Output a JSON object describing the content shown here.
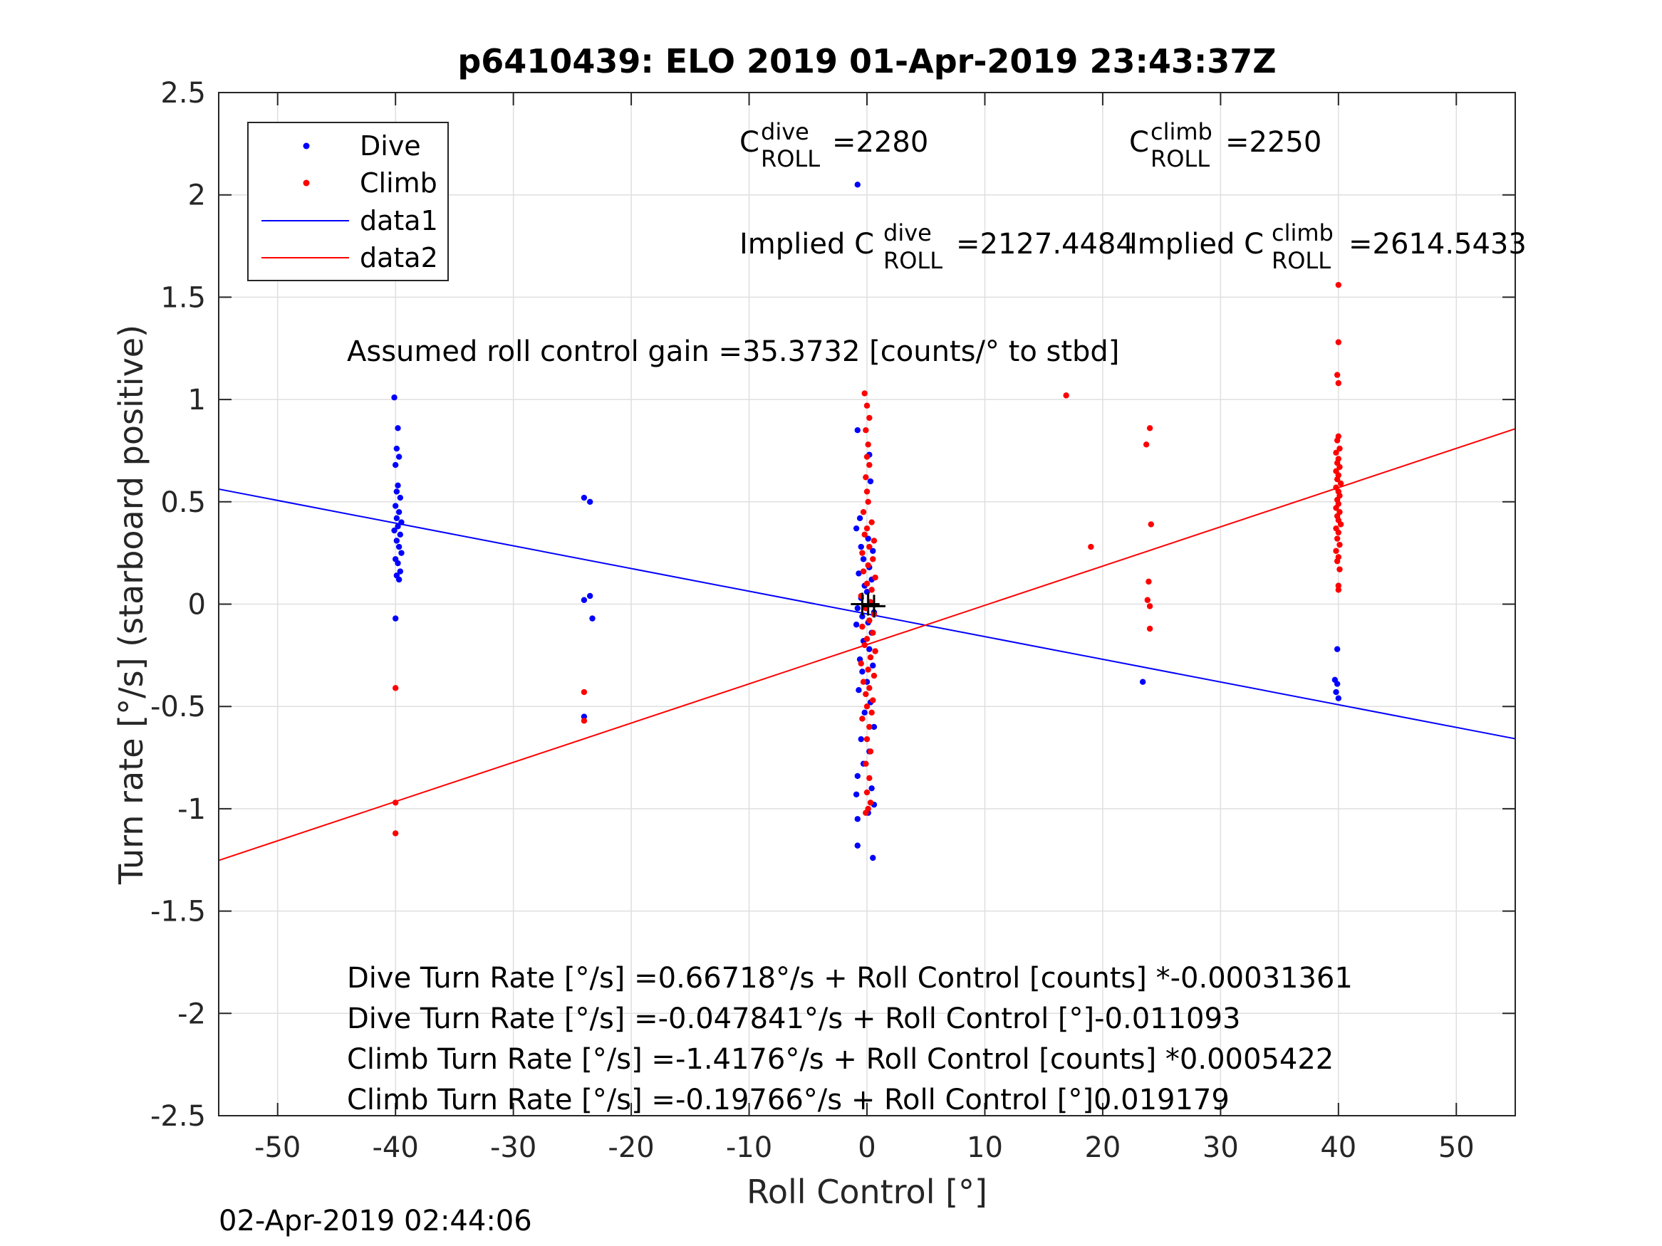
{
  "chart_data": {
    "type": "scatter",
    "title": "p6410439: ELO 2019 01-Apr-2019 23:43:37Z",
    "xlabel": "Roll Control [°]",
    "ylabel": "Turn rate [°/s] (starboard positive)",
    "xlim": [
      -55,
      55
    ],
    "ylim": [
      -2.5,
      2.5
    ],
    "xticks": [
      -50,
      -40,
      -30,
      -20,
      -10,
      0,
      10,
      20,
      30,
      40,
      50
    ],
    "yticks": [
      -2.5,
      -2,
      -1.5,
      -1,
      -0.5,
      0,
      0.5,
      1,
      1.5,
      2,
      2.5
    ],
    "xtick_labels": [
      "-50",
      "-40",
      "-30",
      "-20",
      "-10",
      "0",
      "10",
      "20",
      "30",
      "40",
      "50"
    ],
    "ytick_labels": [
      "-2.5",
      "-2",
      "-1.5",
      "-1",
      "-0.5",
      "0",
      "0.5",
      "1",
      "1.5",
      "2",
      "2.5"
    ],
    "grid": true,
    "legend_position": "top-left",
    "series": [
      {
        "name": "Dive",
        "kind": "points",
        "color": "#0000ff",
        "points": [
          [
            -40.1,
            1.01
          ],
          [
            -39.8,
            0.86
          ],
          [
            -39.9,
            0.76
          ],
          [
            -39.7,
            0.72
          ],
          [
            -40.0,
            0.68
          ],
          [
            -39.8,
            0.58
          ],
          [
            -39.9,
            0.55
          ],
          [
            -39.6,
            0.52
          ],
          [
            -40.0,
            0.48
          ],
          [
            -39.7,
            0.45
          ],
          [
            -39.9,
            0.42
          ],
          [
            -39.5,
            0.4
          ],
          [
            -39.8,
            0.38
          ],
          [
            -40.1,
            0.36
          ],
          [
            -39.6,
            0.34
          ],
          [
            -39.9,
            0.31
          ],
          [
            -39.7,
            0.28
          ],
          [
            -39.5,
            0.25
          ],
          [
            -40.0,
            0.22
          ],
          [
            -39.8,
            0.2
          ],
          [
            -39.6,
            0.16
          ],
          [
            -39.9,
            0.14
          ],
          [
            -39.7,
            0.12
          ],
          [
            -40.0,
            -0.07
          ],
          [
            -24.0,
            0.52
          ],
          [
            -23.5,
            0.5
          ],
          [
            -24.0,
            0.02
          ],
          [
            -23.5,
            0.04
          ],
          [
            -23.3,
            -0.07
          ],
          [
            -24.0,
            -0.55
          ],
          [
            -0.8,
            2.05
          ],
          [
            -0.8,
            0.85
          ],
          [
            0.2,
            0.73
          ],
          [
            0.3,
            0.6
          ],
          [
            -0.6,
            0.42
          ],
          [
            -0.9,
            0.37
          ],
          [
            0.1,
            0.32
          ],
          [
            -0.5,
            0.28
          ],
          [
            0.5,
            0.26
          ],
          [
            -0.3,
            0.22
          ],
          [
            0.2,
            0.18
          ],
          [
            -0.7,
            0.15
          ],
          [
            0.4,
            0.12
          ],
          [
            -0.2,
            0.09
          ],
          [
            0.0,
            0.06
          ],
          [
            -0.5,
            0.03
          ],
          [
            0.3,
            0.01
          ],
          [
            -0.8,
            -0.02
          ],
          [
            0.6,
            -0.04
          ],
          [
            -0.4,
            -0.06
          ],
          [
            0.1,
            -0.09
          ],
          [
            -0.9,
            -0.1
          ],
          [
            0.4,
            -0.14
          ],
          [
            -0.3,
            -0.18
          ],
          [
            0.2,
            -0.22
          ],
          [
            -0.6,
            -0.27
          ],
          [
            0.5,
            -0.3
          ],
          [
            -0.4,
            -0.33
          ],
          [
            0.0,
            -0.38
          ],
          [
            -0.7,
            -0.42
          ],
          [
            0.3,
            -0.48
          ],
          [
            -0.2,
            -0.53
          ],
          [
            0.6,
            -0.6
          ],
          [
            -0.5,
            -0.66
          ],
          [
            0.2,
            -0.72
          ],
          [
            -0.3,
            -0.78
          ],
          [
            -0.8,
            -0.84
          ],
          [
            0.4,
            -0.9
          ],
          [
            -0.9,
            -0.93
          ],
          [
            0.6,
            -0.98
          ],
          [
            0.1,
            -1.02
          ],
          [
            -0.8,
            -1.05
          ],
          [
            -0.8,
            -1.18
          ],
          [
            0.5,
            -1.24
          ],
          [
            23.4,
            -0.38
          ],
          [
            39.9,
            -0.22
          ],
          [
            39.7,
            -0.37
          ],
          [
            39.9,
            -0.39
          ],
          [
            39.8,
            -0.43
          ],
          [
            40.0,
            -0.46
          ]
        ]
      },
      {
        "name": "Climb",
        "kind": "points",
        "color": "#ff0000",
        "points": [
          [
            -40.0,
            -0.41
          ],
          [
            -40.0,
            -0.97
          ],
          [
            -40.0,
            -1.12
          ],
          [
            -24.0,
            -0.43
          ],
          [
            -24.0,
            -0.57
          ],
          [
            -0.2,
            1.03
          ],
          [
            0.0,
            0.97
          ],
          [
            0.2,
            0.91
          ],
          [
            -0.1,
            0.85
          ],
          [
            0.1,
            0.78
          ],
          [
            0.0,
            0.72
          ],
          [
            0.2,
            0.68
          ],
          [
            -0.1,
            0.62
          ],
          [
            0.0,
            0.55
          ],
          [
            0.1,
            0.5
          ],
          [
            -0.3,
            0.45
          ],
          [
            0.4,
            0.4
          ],
          [
            0.0,
            0.37
          ],
          [
            -0.2,
            0.34
          ],
          [
            0.6,
            0.31
          ],
          [
            0.2,
            0.28
          ],
          [
            -0.4,
            0.25
          ],
          [
            0.5,
            0.22
          ],
          [
            0.1,
            0.19
          ],
          [
            -0.3,
            0.16
          ],
          [
            0.7,
            0.13
          ],
          [
            0.0,
            0.1
          ],
          [
            0.4,
            0.07
          ],
          [
            -0.5,
            0.04
          ],
          [
            0.3,
            0.01
          ],
          [
            -0.1,
            -0.02
          ],
          [
            0.6,
            -0.05
          ],
          [
            0.2,
            -0.08
          ],
          [
            -0.4,
            -0.11
          ],
          [
            0.5,
            -0.14
          ],
          [
            0.0,
            -0.17
          ],
          [
            -0.2,
            -0.2
          ],
          [
            0.7,
            -0.23
          ],
          [
            0.3,
            -0.26
          ],
          [
            -0.5,
            -0.29
          ],
          [
            0.1,
            -0.32
          ],
          [
            0.6,
            -0.35
          ],
          [
            -0.3,
            -0.38
          ],
          [
            0.2,
            -0.41
          ],
          [
            -0.1,
            -0.44
          ],
          [
            0.5,
            -0.47
          ],
          [
            0.0,
            -0.5
          ],
          [
            0.4,
            -0.53
          ],
          [
            -0.4,
            -0.56
          ],
          [
            0.2,
            -0.6
          ],
          [
            0.0,
            -0.66
          ],
          [
            0.3,
            -0.72
          ],
          [
            -0.1,
            -0.78
          ],
          [
            0.2,
            -0.85
          ],
          [
            0.0,
            -0.92
          ],
          [
            0.3,
            -0.97
          ],
          [
            0.1,
            -1.0
          ],
          [
            -0.1,
            -1.02
          ],
          [
            16.9,
            1.02
          ],
          [
            19.0,
            0.28
          ],
          [
            24.0,
            0.86
          ],
          [
            23.7,
            0.78
          ],
          [
            24.1,
            0.39
          ],
          [
            23.9,
            0.11
          ],
          [
            23.8,
            0.02
          ],
          [
            24.0,
            -0.01
          ],
          [
            24.0,
            -0.12
          ],
          [
            40.0,
            1.56
          ],
          [
            40.0,
            1.28
          ],
          [
            39.9,
            1.12
          ],
          [
            40.0,
            1.08
          ],
          [
            40.0,
            0.82
          ],
          [
            39.9,
            0.8
          ],
          [
            40.1,
            0.76
          ],
          [
            39.8,
            0.74
          ],
          [
            40.0,
            0.71
          ],
          [
            39.9,
            0.69
          ],
          [
            40.1,
            0.67
          ],
          [
            39.8,
            0.65
          ],
          [
            40.0,
            0.63
          ],
          [
            39.9,
            0.61
          ],
          [
            40.2,
            0.59
          ],
          [
            39.8,
            0.57
          ],
          [
            40.0,
            0.55
          ],
          [
            40.1,
            0.53
          ],
          [
            39.9,
            0.51
          ],
          [
            40.0,
            0.49
          ],
          [
            39.8,
            0.47
          ],
          [
            40.1,
            0.45
          ],
          [
            39.9,
            0.43
          ],
          [
            40.0,
            0.41
          ],
          [
            40.2,
            0.39
          ],
          [
            39.8,
            0.37
          ],
          [
            40.0,
            0.35
          ],
          [
            39.9,
            0.32
          ],
          [
            40.1,
            0.29
          ],
          [
            39.8,
            0.26
          ],
          [
            40.0,
            0.23
          ],
          [
            39.9,
            0.21
          ],
          [
            40.1,
            0.17
          ],
          [
            40.0,
            0.09
          ],
          [
            40.0,
            0.07
          ]
        ]
      },
      {
        "name": "data1",
        "kind": "line",
        "color": "#0000ff",
        "x": [
          -55,
          55
        ],
        "y": [
          0.5622,
          -0.6579
        ]
      },
      {
        "name": "data2",
        "kind": "line",
        "color": "#ff0000",
        "x": [
          -55,
          55
        ],
        "y": [
          -1.2525,
          0.8572
        ]
      }
    ],
    "means": {
      "color": "#000000",
      "points": [
        [
          -0.4,
          0.0
        ],
        [
          0.1,
          0.0
        ],
        [
          0.6,
          -0.01
        ]
      ]
    },
    "annotations": {
      "c_dive": {
        "base": "C",
        "sup": "dive",
        "sub": "ROLL",
        "value": "=2280"
      },
      "c_climb": {
        "base": "C",
        "sup": "climb",
        "sub": "ROLL",
        "value": "=2250"
      },
      "implied_dive": {
        "base": "Implied C",
        "sup": "dive",
        "sub": "ROLL",
        "value": "=2127.4484"
      },
      "implied_climb": {
        "base": "Implied C",
        "sup": "climb",
        "sub": "ROLL",
        "value": "=2614.5433"
      },
      "gain": "Assumed roll control gain =35.3732 [counts/° to stbd]",
      "eq1": "Dive Turn Rate [°/s] =0.66718°/s + Roll Control [counts] *-0.00031361",
      "eq2": "Dive Turn Rate [°/s] =-0.047841°/s + Roll Control [°]-0.011093",
      "eq3": "Climb Turn Rate [°/s] =-1.4176°/s + Roll Control [counts] *0.0005422",
      "eq4": "Climb Turn Rate [°/s] =-0.19766°/s + Roll Control [°]0.019179"
    },
    "timestamp": "02-Apr-2019 02:44:06"
  }
}
